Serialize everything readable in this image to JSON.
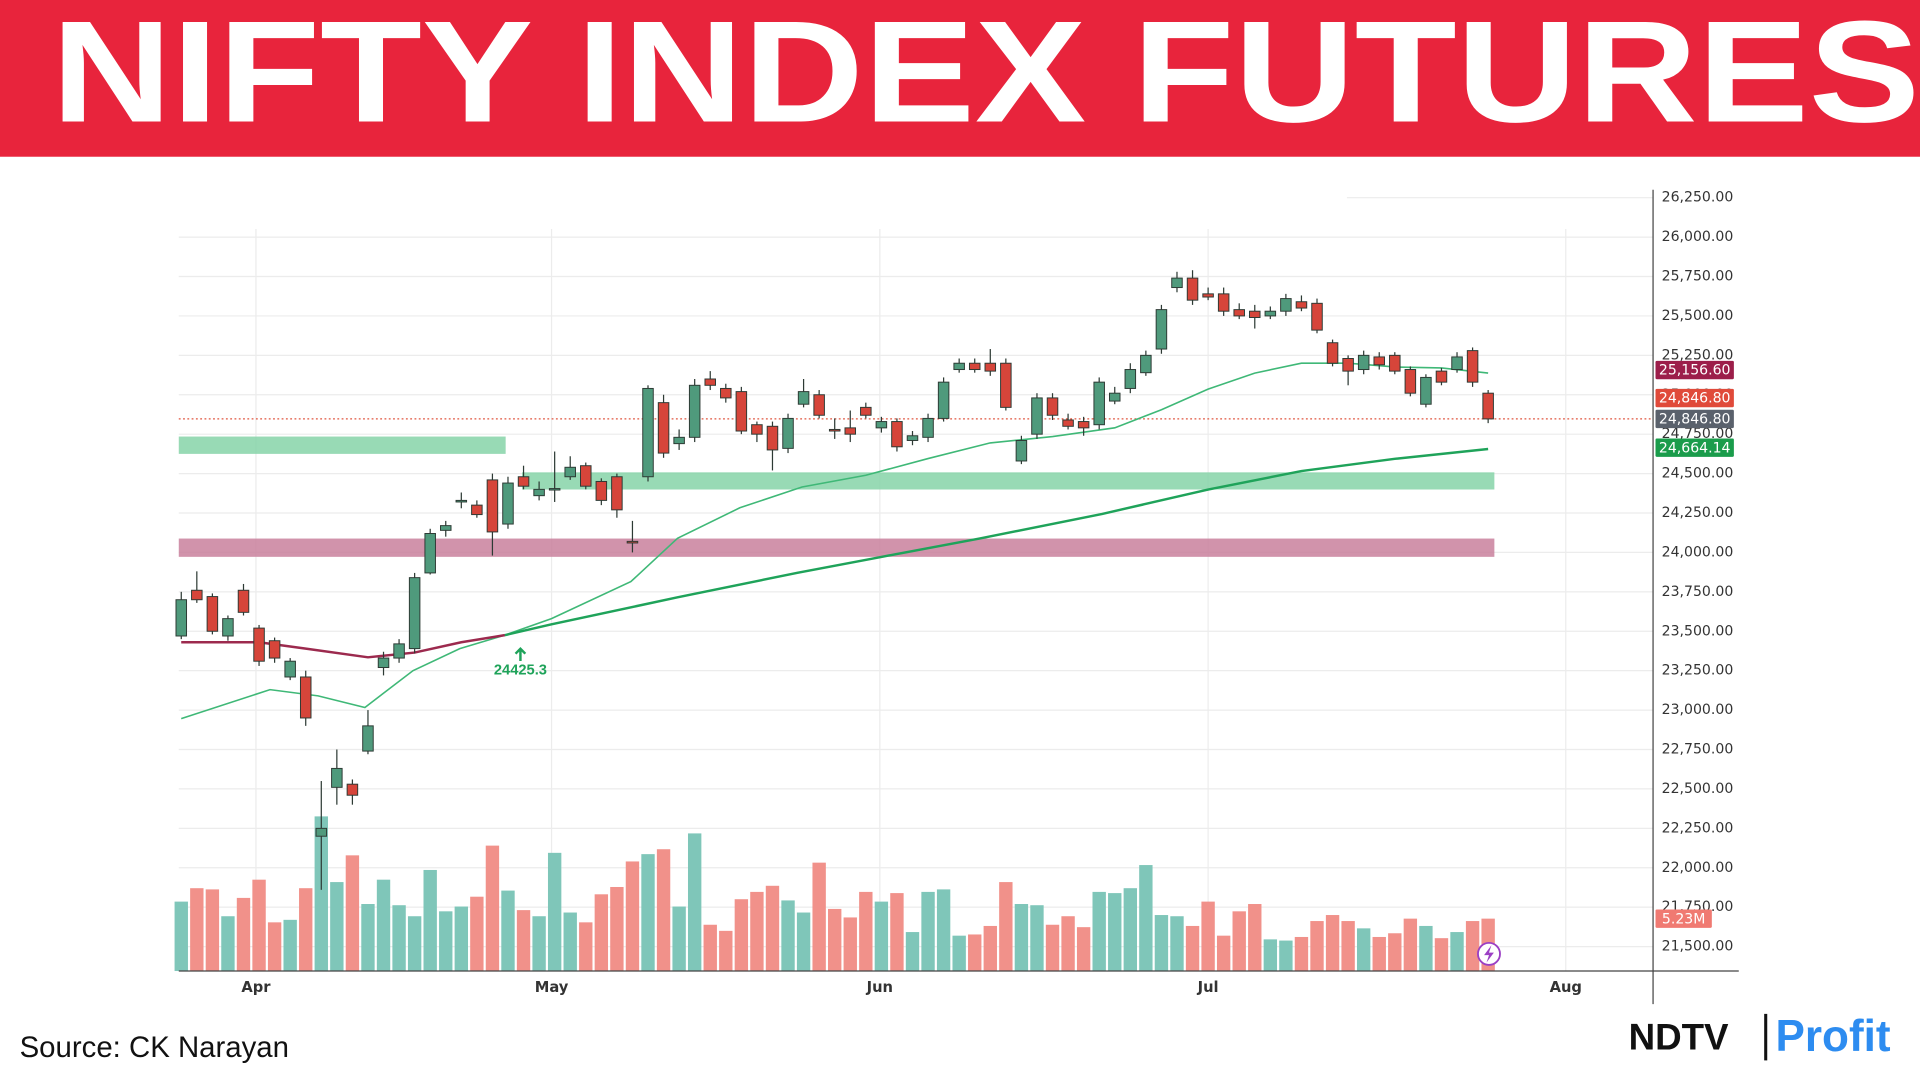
{
  "header": {
    "title": "NIFTY INDEX FUTURES"
  },
  "footer": {
    "source": "Source: CK Narayan",
    "brand": "NDTV",
    "brand_suffix": "Profit"
  },
  "chart_data": {
    "type": "candlestick",
    "up_color": "#4f9a7c",
    "down_color": "#d6453a",
    "open": [
      23470,
      23760,
      23720,
      23470,
      23760,
      23520,
      23440,
      23210,
      23210,
      22200,
      22510,
      22530,
      22740,
      23270,
      23330,
      23390,
      23870,
      24140,
      24320,
      24300,
      24460,
      24180,
      24480,
      24360,
      24400,
      24480,
      24550,
      24450,
      24480,
      24070,
      24480,
      24950,
      24690,
      24730,
      25100,
      25040,
      25020,
      24810,
      24800,
      24660,
      24940,
      25000,
      24780,
      24790,
      24920,
      24790,
      24830,
      24710,
      24730,
      24850,
      25160,
      25200,
      25200,
      25200,
      24580,
      24750,
      24980,
      24840,
      24830,
      24810,
      24960,
      25040,
      25140,
      25290,
      25680,
      25740,
      25640,
      25640,
      25540,
      25530,
      25500,
      25530,
      25590,
      25580,
      25330,
      25230,
      25160,
      25240,
      25250,
      25160,
      24940,
      25150,
      25160,
      25280,
      25010
    ],
    "high": [
      23750,
      23880,
      23740,
      23600,
      23800,
      23540,
      23460,
      23330,
      23250,
      22550,
      22750,
      22560,
      23000,
      23370,
      23450,
      23870,
      24150,
      24200,
      24380,
      24330,
      24500,
      24480,
      24550,
      24450,
      24640,
      24610,
      24570,
      24470,
      24500,
      24200,
      25060,
      25000,
      24780,
      25100,
      25150,
      25070,
      25050,
      24830,
      24830,
      24880,
      25100,
      25030,
      24850,
      24900,
      24950,
      24860,
      24850,
      24770,
      24880,
      25110,
      25230,
      25230,
      25290,
      25230,
      24740,
      25010,
      25010,
      24880,
      24860,
      25110,
      25050,
      25200,
      25280,
      25570,
      25780,
      25790,
      25680,
      25680,
      25580,
      25570,
      25560,
      25640,
      25630,
      25610,
      25350,
      25250,
      25280,
      25270,
      25270,
      25180,
      25130,
      25170,
      25270,
      25300,
      25030
    ],
    "low": [
      23450,
      23680,
      23480,
      23440,
      23600,
      23280,
      23300,
      23190,
      22900,
      21860,
      22400,
      22400,
      22720,
      23220,
      23300,
      23360,
      23860,
      24100,
      24280,
      24220,
      23980,
      24150,
      24400,
      24330,
      24320,
      24460,
      24400,
      24300,
      24220,
      24000,
      24450,
      24600,
      24650,
      24700,
      25030,
      24950,
      24750,
      24700,
      24520,
      24630,
      24920,
      24850,
      24720,
      24700,
      24850,
      24760,
      24640,
      24680,
      24700,
      24830,
      25140,
      25140,
      25120,
      24900,
      24560,
      24720,
      24840,
      24780,
      24740,
      24780,
      24940,
      25010,
      25120,
      25260,
      25650,
      25570,
      25600,
      25500,
      25480,
      25420,
      25480,
      25500,
      25530,
      25390,
      25180,
      25060,
      25130,
      25160,
      25130,
      24990,
      24920,
      25060,
      25140,
      25050,
      24820
    ],
    "close": [
      23700,
      23700,
      23500,
      23580,
      23620,
      23310,
      23330,
      23310,
      22950,
      22250,
      22630,
      22460,
      22900,
      23330,
      23420,
      23840,
      24120,
      24170,
      24330,
      24240,
      24130,
      24440,
      24420,
      24400,
      24405,
      24540,
      24420,
      24330,
      24270,
      24060,
      25040,
      24630,
      24730,
      25060,
      25060,
      24980,
      24770,
      24750,
      24650,
      24850,
      25020,
      24870,
      24770,
      24750,
      24870,
      24830,
      24670,
      24740,
      24850,
      25080,
      25200,
      25160,
      25150,
      24920,
      24710,
      24980,
      24870,
      24800,
      24790,
      25080,
      25010,
      25160,
      25250,
      25540,
      25740,
      25600,
      25620,
      25530,
      25500,
      25490,
      25530,
      25610,
      25550,
      25410,
      25200,
      25150,
      25250,
      25190,
      25150,
      25010,
      25110,
      25080,
      25240,
      25080,
      24846.8
    ],
    "volume": {
      "axis": "y2",
      "up_color": "#7fc6b9",
      "down_color": "#f1918a",
      "values": [
        6.93,
        8.27,
        8.15,
        5.47,
        7.3,
        9.12,
        4.86,
        5.11,
        8.27,
        15.44,
        8.88,
        11.55,
        6.69,
        9.12,
        6.57,
        5.47,
        10.09,
        5.96,
        6.44,
        7.42,
        12.52,
        8.03,
        6.08,
        5.47,
        11.8,
        5.84,
        4.86,
        7.66,
        8.39,
        10.94,
        11.67,
        12.16,
        6.44,
        13.74,
        4.62,
        4.01,
        7.17,
        7.9,
        8.51,
        7.05,
        5.84,
        10.82,
        6.2,
        5.35,
        7.9,
        6.93,
        7.78,
        3.89,
        7.9,
        8.15,
        3.53,
        3.65,
        4.5,
        8.88,
        6.69,
        6.57,
        4.62,
        5.47,
        4.38,
        7.9,
        7.78,
        8.27,
        10.58,
        5.59,
        5.47,
        4.5,
        6.93,
        3.53,
        5.96,
        6.69,
        3.16,
        3.04,
        3.4,
        4.99,
        5.59,
        4.99,
        4.26,
        3.4,
        3.77,
        5.23,
        4.5,
        3.28,
        3.89,
        4.99,
        5.23
      ]
    },
    "lines": [
      {
        "color": "#3fb877",
        "width": 1.3,
        "x": [
          0,
          5.7,
          8.8,
          11.8,
          14.9,
          17.9,
          20.8,
          23.8,
          28.9,
          31.9,
          35.9,
          39.9,
          44,
          48,
          52,
          56,
          60,
          63,
          66,
          69,
          72,
          75,
          78,
          81,
          84
        ],
        "values": [
          22946,
          23130,
          23090,
          23016,
          23250,
          23390,
          23475,
          23580,
          23815,
          24090,
          24283,
          24415,
          24490,
          24595,
          24695,
          24735,
          24790,
          24905,
          25036,
          25137,
          25200,
          25200,
          25176,
          25170,
          25137
        ]
      },
      {
        "color": "#9c2a4e",
        "width": 2,
        "x": [
          0,
          5,
          8,
          12,
          15,
          18,
          20.8
        ],
        "values": [
          23430,
          23430,
          23390,
          23335,
          23365,
          23430,
          23475
        ]
      },
      {
        "color": "#1fa35a",
        "width": 2,
        "x": [
          20.8,
          23.8,
          31.9,
          39.6,
          45,
          51.3,
          59.2,
          66,
          72,
          78,
          84
        ],
        "values": [
          23475,
          23544,
          23715,
          23871,
          23972,
          24088,
          24244,
          24399,
          24516,
          24594,
          24656
        ]
      }
    ],
    "zones": [
      {
        "from": 24625,
        "to": 24735,
        "x": [
          -0.16,
          20.85
        ],
        "color": "#86d3a8"
      },
      {
        "from": 24399,
        "to": 24508,
        "x": [
          21.9,
          84.4
        ],
        "color": "#86d3a8"
      },
      {
        "from": 23972,
        "to": 24088,
        "x": [
          -0.16,
          84.4
        ],
        "color": "#c9809c"
      }
    ],
    "annotations": [
      {
        "label": "24425.3",
        "x": 21.8,
        "y": 23249,
        "color": "#1fa35a"
      }
    ],
    "last_price_line": {
      "value": 24846.8,
      "color": "#e0553f"
    },
    "price_tags": [
      {
        "value": 24664.14,
        "label": "24,664.14",
        "color": "#1a9c4b"
      },
      {
        "value": 24846.8,
        "label": "24,846.80",
        "color": "#5a616c"
      },
      {
        "value": 24846.8,
        "label": "24,846.80",
        "color": "#e04a3a"
      },
      {
        "value": 25156.6,
        "label": "25,156.60",
        "color": "#9c1e4a"
      }
    ],
    "volume_tag": {
      "value": 5.23,
      "label": "5.23M",
      "color": "#f07a72"
    },
    "xlim": [
      -0.16,
      94.6
    ],
    "xticks": [
      {
        "value": 4.8,
        "label": "Apr"
      },
      {
        "value": 23.8,
        "label": "May"
      },
      {
        "value": 44.9,
        "label": "Jun"
      },
      {
        "value": 66.0,
        "label": "Jul"
      },
      {
        "value": 88.99,
        "label": "Aug"
      }
    ],
    "ylim": [
      21345,
      26300
    ],
    "yticks": [
      {
        "value": 21500,
        "label": "21,500.00"
      },
      {
        "value": 21750,
        "label": "21,750.00"
      },
      {
        "value": 22000,
        "label": "22,000.00"
      },
      {
        "value": 22250,
        "label": "22,250.00"
      },
      {
        "value": 22500,
        "label": "22,500.00"
      },
      {
        "value": 22750,
        "label": "22,750.00"
      },
      {
        "value": 23000,
        "label": "23,000.00"
      },
      {
        "value": 23250,
        "label": "23,250.00"
      },
      {
        "value": 23500,
        "label": "23,500.00"
      },
      {
        "value": 23750,
        "label": "23,750.00"
      },
      {
        "value": 24000,
        "label": "24,000.00"
      },
      {
        "value": 24250,
        "label": "24,250.00"
      },
      {
        "value": 24500,
        "label": "24,500.00"
      },
      {
        "value": 24750,
        "label": "24,750.00"
      },
      {
        "value": 25000,
        "label": "25,000.00"
      },
      {
        "value": 25250,
        "label": "25,250.00"
      },
      {
        "value": 25500,
        "label": "25,500.00"
      },
      {
        "value": 25750,
        "label": "25,750.00"
      },
      {
        "value": 26000,
        "label": "26,000.00"
      },
      {
        "value": 26250,
        "label": "26,250.00"
      }
    ],
    "y2lim": [
      0,
      78
    ],
    "grid": true
  }
}
